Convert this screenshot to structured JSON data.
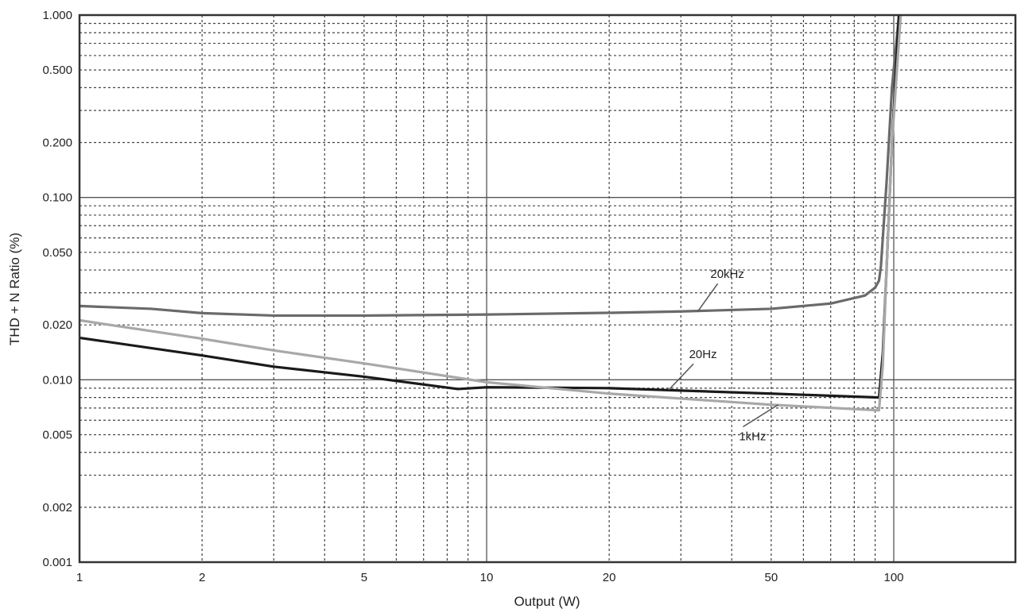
{
  "chart_data": {
    "type": "line",
    "title": "",
    "xlabel": "Output (W)",
    "ylabel": "THD + N Ratio (%)",
    "xscale": "log",
    "yscale": "log",
    "xlim": [
      1,
      200
    ],
    "ylim": [
      0.001,
      1.0
    ],
    "grid": true,
    "x_ticks": [
      1,
      2,
      5,
      10,
      20,
      50,
      100
    ],
    "x_tick_labels": [
      "1",
      "2",
      "5",
      "10",
      "20",
      "50",
      "100"
    ],
    "y_ticks": [
      0.001,
      0.002,
      0.005,
      0.01,
      0.02,
      0.05,
      0.1,
      0.2,
      0.5,
      1.0
    ],
    "y_tick_labels": [
      "0.001",
      "0.002",
      "0.005",
      "0.010",
      "0.020",
      "0.050",
      "0.100",
      "0.200",
      "0.500",
      "1.000"
    ],
    "series": [
      {
        "name": "20kHz",
        "color": "#6a6a6a",
        "x": [
          1,
          1.5,
          2,
          3,
          5,
          10,
          20,
          30,
          50,
          70,
          85,
          90,
          92,
          93,
          94,
          96,
          99,
          103
        ],
        "y": [
          0.0254,
          0.0245,
          0.0232,
          0.0225,
          0.0225,
          0.0228,
          0.0233,
          0.0237,
          0.0245,
          0.0262,
          0.029,
          0.032,
          0.035,
          0.042,
          0.06,
          0.12,
          0.4,
          1.0
        ]
      },
      {
        "name": "20Hz",
        "color": "#1a1a1a",
        "x": [
          1,
          2,
          3,
          5,
          8.5,
          10,
          20,
          50,
          92,
          94,
          96,
          99,
          103
        ],
        "y": [
          0.017,
          0.0136,
          0.0118,
          0.0104,
          0.0089,
          0.0091,
          0.009,
          0.0084,
          0.008,
          0.014,
          0.04,
          0.2,
          1.0
        ]
      },
      {
        "name": "1kHz",
        "color": "#a8a8a8",
        "x": [
          1,
          2,
          3,
          5,
          10,
          20,
          50,
          92,
          94,
          96,
          99,
          104
        ],
        "y": [
          0.0212,
          0.0168,
          0.0145,
          0.0123,
          0.0097,
          0.0084,
          0.0073,
          0.0068,
          0.012,
          0.04,
          0.2,
          1.0
        ]
      }
    ],
    "annotations": [
      {
        "text": "20kHz",
        "x": 39,
        "y": 0.038,
        "points_to": [
          33,
          0.0237
        ]
      },
      {
        "text": "20Hz",
        "x": 34,
        "y": 0.0138,
        "points_to": [
          28,
          0.0088
        ]
      },
      {
        "text": "1kHz",
        "x": 45,
        "y": 0.0049,
        "points_to": [
          52,
          0.0073
        ]
      }
    ]
  }
}
